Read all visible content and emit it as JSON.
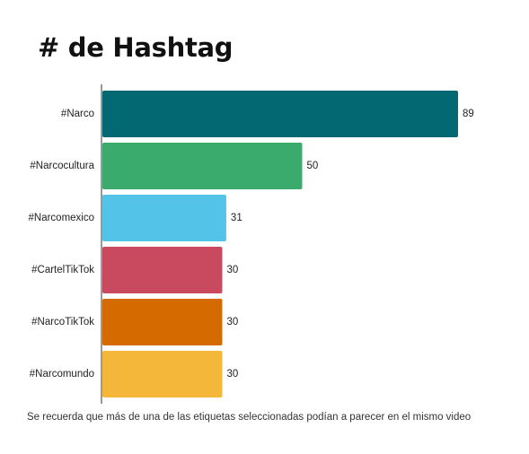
{
  "chart_data": {
    "type": "bar",
    "orientation": "horizontal",
    "title": "# de Hashtag",
    "categories": [
      "#Narco",
      "#Narcocultura",
      "#Narcomexico",
      "#CartelTikTok",
      "#NarcoTikTok",
      "#Narcomundo"
    ],
    "values": [
      89,
      50,
      31,
      30,
      30,
      30
    ],
    "data_labels": [
      "89",
      "50",
      "31",
      "30",
      "30",
      "30"
    ],
    "colors": [
      "#036872",
      "#3aaa6d",
      "#53c4e8",
      "#c94a5f",
      "#d46a00",
      "#f4b73a"
    ],
    "xlim": [
      0,
      89
    ],
    "grid": false,
    "legend": "none",
    "xlabel": "",
    "ylabel": "",
    "footnote": "Se recuerda que más de una de las etiquetas seleccionadas podían a parecer en el mismo video"
  }
}
